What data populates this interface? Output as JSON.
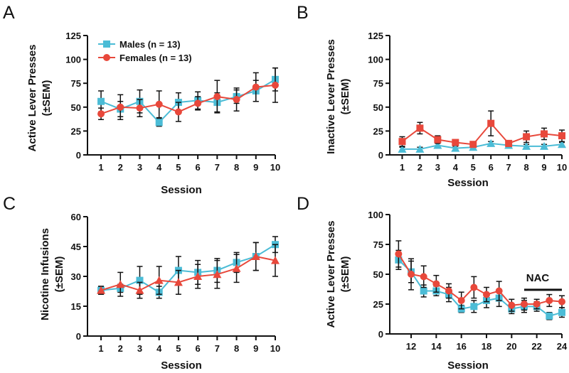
{
  "colors": {
    "males": "#4bbcd6",
    "females": "#e8483b",
    "axis": "#111111"
  },
  "chart_data": [
    {
      "panel": "A",
      "type": "line",
      "ylabel_line1": "Active Lever Presses",
      "ylabel_line2": "(±SEM)",
      "xlabel": "Session",
      "x": [
        1,
        2,
        3,
        4,
        5,
        6,
        7,
        8,
        9,
        10
      ],
      "xticks": [
        1,
        2,
        3,
        4,
        5,
        6,
        7,
        8,
        9,
        10
      ],
      "xlim": [
        0.3,
        10
      ],
      "yticks": [
        0,
        25,
        50,
        75,
        100,
        125
      ],
      "ylim": [
        0,
        125
      ],
      "legend": [
        "Males (n = 13)",
        "Females (n = 13)"
      ],
      "series": [
        {
          "name": "Males (n = 13)",
          "color_key": "males",
          "marker": "square",
          "values": [
            56,
            48,
            56,
            34,
            55,
            57,
            55,
            61,
            67,
            79
          ],
          "sem": [
            11,
            8,
            12,
            4,
            10,
            9,
            10,
            7,
            11,
            12
          ]
        },
        {
          "name": "Females (n = 13)",
          "color_key": "females",
          "marker": "circle",
          "values": [
            43,
            50,
            49,
            53,
            45,
            54,
            61,
            58,
            71,
            73
          ],
          "sem": [
            6,
            13,
            9,
            14,
            10,
            7,
            17,
            12,
            15,
            18
          ]
        }
      ]
    },
    {
      "panel": "B",
      "type": "line",
      "ylabel_line1": "Inactive Lever Presses",
      "ylabel_line2": "(±SEM)",
      "xlabel": "Session",
      "x": [
        1,
        2,
        3,
        4,
        5,
        6,
        7,
        8,
        9,
        10
      ],
      "xticks": [
        1,
        2,
        3,
        4,
        5,
        6,
        7,
        8,
        9,
        10
      ],
      "xlim": [
        0.3,
        10
      ],
      "yticks": [
        0,
        25,
        50,
        75,
        100,
        125
      ],
      "ylim": [
        0,
        125
      ],
      "series": [
        {
          "name": "Males (n = 13)",
          "color_key": "males",
          "marker": "triangle",
          "values": [
            6,
            6,
            10,
            7,
            8,
            12,
            10,
            9,
            9,
            11
          ],
          "sem": [
            2,
            2,
            3,
            2,
            2,
            2,
            2,
            2,
            2,
            2
          ]
        },
        {
          "name": "Females (n = 13)",
          "color_key": "females",
          "marker": "square",
          "values": [
            14,
            28,
            16,
            13,
            11,
            33,
            12,
            19,
            22,
            20
          ],
          "sem": [
            5,
            6,
            4,
            2,
            2,
            13,
            3,
            6,
            6,
            6
          ]
        }
      ]
    },
    {
      "panel": "C",
      "type": "line",
      "ylabel_line1": "Nicotine Infusions",
      "ylabel_line2": "(±SEM)",
      "xlabel": "Session",
      "x": [
        1,
        2,
        3,
        4,
        5,
        6,
        7,
        8,
        9,
        10
      ],
      "xticks": [
        1,
        2,
        3,
        4,
        5,
        6,
        7,
        8,
        9,
        10
      ],
      "xlim": [
        0.3,
        10
      ],
      "yticks": [
        0,
        15,
        30,
        45,
        60
      ],
      "ylim": [
        0,
        60
      ],
      "series": [
        {
          "name": "Males (n = 13)",
          "color_key": "males",
          "marker": "square",
          "values": [
            23,
            24,
            28,
            22,
            33,
            32,
            33,
            37,
            40,
            46
          ],
          "sem": [
            2,
            2,
            7,
            3,
            7,
            6,
            6,
            5,
            7,
            4
          ]
        },
        {
          "name": "Females (n = 13)",
          "color_key": "females",
          "marker": "triangle",
          "values": [
            23,
            26,
            23,
            28,
            27,
            30,
            31,
            34,
            40,
            38
          ],
          "sem": [
            2,
            6,
            4,
            7,
            6,
            6,
            7,
            7,
            7,
            8
          ]
        }
      ]
    },
    {
      "panel": "D",
      "type": "line",
      "ylabel_line1": "Active Lever Presses",
      "ylabel_line2": "(±SEM)",
      "xlabel": "Session",
      "x": [
        11,
        12,
        13,
        14,
        15,
        16,
        17,
        18,
        19,
        20,
        21,
        22,
        23,
        24
      ],
      "xticks": [
        12,
        14,
        16,
        18,
        20,
        22,
        24
      ],
      "xlim": [
        10.3,
        24
      ],
      "yticks": [
        0,
        25,
        50,
        75,
        100
      ],
      "ylim": [
        0,
        100
      ],
      "annotation": {
        "text": "NAC",
        "from": 21,
        "to": 24,
        "y": 37
      },
      "series": [
        {
          "name": "Males (n = 13)",
          "color_key": "males",
          "marker": "square",
          "values": [
            62,
            52,
            36,
            36,
            33,
            21,
            23,
            28,
            30,
            21,
            23,
            23,
            15,
            18
          ],
          "sem": [
            8,
            9,
            5,
            4,
            6,
            3,
            5,
            6,
            7,
            4,
            5,
            4,
            3,
            4
          ]
        },
        {
          "name": "Females (n = 13)",
          "color_key": "females",
          "marker": "circle",
          "values": [
            67,
            50,
            48,
            42,
            36,
            28,
            39,
            33,
            36,
            24,
            25,
            25,
            28,
            27
          ],
          "sem": [
            11,
            13,
            9,
            7,
            6,
            7,
            9,
            6,
            8,
            5,
            5,
            4,
            5,
            5
          ]
        }
      ]
    }
  ]
}
